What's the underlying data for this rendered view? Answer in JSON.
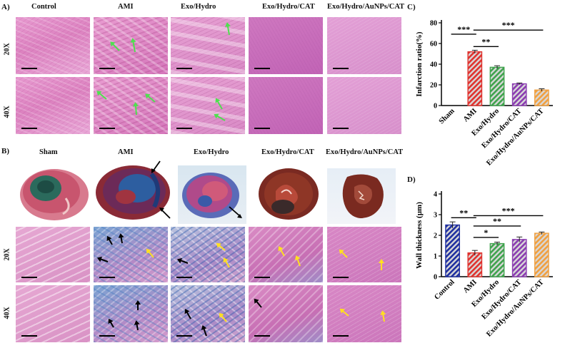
{
  "panel_labels": {
    "a": "A)",
    "b": "B)",
    "c": "C)",
    "d": "D)"
  },
  "panel_a": {
    "columns": [
      "Control",
      "AMI",
      "Exo/Hydro",
      "Exo/Hydro/CAT",
      "Exo/Hydro/AuNPs/CAT"
    ],
    "rows": [
      "20X",
      "40X"
    ]
  },
  "panel_b": {
    "columns": [
      "Sham",
      "AMI",
      "Exo/Hydro",
      "Exo/Hydro/CAT",
      "Exo/Hydro/AuNPs/CAT"
    ],
    "rows": [
      "20X",
      "40X"
    ]
  },
  "chart_data": [
    {
      "id": "C",
      "type": "bar",
      "ylabel": "Infarction ratio(%)",
      "ylim": [
        0,
        80
      ],
      "yticks": [
        0,
        20,
        40,
        60,
        80
      ],
      "categories": [
        "Sham",
        "AMI",
        "Exo/Hydro",
        "Exo/Hydro/CAT",
        "Exo/Hydro/AuNPs/CAT"
      ],
      "values": [
        0,
        52,
        37,
        21,
        15
      ],
      "errors": [
        0,
        1.5,
        1.5,
        0.8,
        1.2
      ],
      "bar_colors": [
        "#1f2fa0",
        "#e0322e",
        "#3fa34d",
        "#8a3cb0",
        "#f0a040"
      ],
      "significance": [
        {
          "from": 0,
          "to": 1,
          "label": "***",
          "y": 69
        },
        {
          "from": 1,
          "to": 2,
          "label": "**",
          "y": 57
        },
        {
          "from": 1,
          "to": 4,
          "label": "***",
          "y": 73
        }
      ]
    },
    {
      "id": "D",
      "type": "bar",
      "ylabel": "Wall thickness (µm)",
      "ylim": [
        0,
        4
      ],
      "yticks": [
        0,
        1,
        2,
        3,
        4
      ],
      "categories": [
        "Control",
        "AMI",
        "Exo/Hydro",
        "Exo/Hydro/CAT",
        "Exo/Hydro/AuNPs/CAT"
      ],
      "values": [
        2.5,
        1.15,
        1.6,
        1.8,
        2.1
      ],
      "errors": [
        0.15,
        0.12,
        0.07,
        0.12,
        0.06
      ],
      "bar_colors": [
        "#1f2fa0",
        "#e0322e",
        "#3fa34d",
        "#8a3cb0",
        "#f0a040"
      ],
      "significance": [
        {
          "from": 0,
          "to": 1,
          "label": "**",
          "y": 2.85
        },
        {
          "from": 1,
          "to": 2,
          "label": "*",
          "y": 1.9
        },
        {
          "from": 1,
          "to": 3,
          "label": "**",
          "y": 2.45
        },
        {
          "from": 1,
          "to": 4,
          "label": "***",
          "y": 2.95
        }
      ]
    }
  ]
}
